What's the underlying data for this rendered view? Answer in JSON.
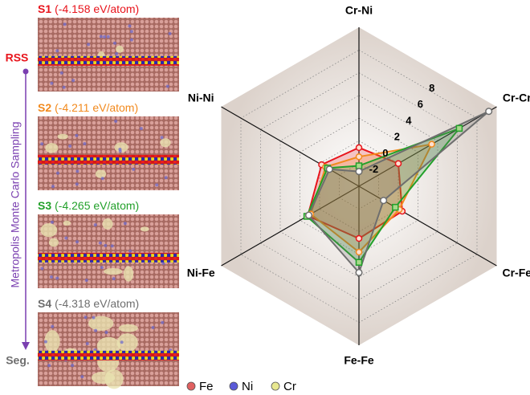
{
  "chart_data": {
    "type": "radar",
    "categories": [
      "Cr-Ni",
      "Cr-Cr",
      "Cr-Fe",
      "Fe-Fe",
      "Ni-Fe",
      "Ni-Ni"
    ],
    "rlim": [
      -4,
      10
    ],
    "rticks": [
      -2,
      0,
      2,
      4,
      6,
      8
    ],
    "grid": true,
    "series": [
      {
        "name": "S1",
        "energy": "(-4.158 eV/atom)",
        "color": "#e8141c",
        "marker": "circle",
        "values": [
          -0.6,
          0.0,
          0.4,
          0.6,
          1.2,
          -0.2
        ]
      },
      {
        "name": "S2",
        "energy": "(-4.211 eV/atom)",
        "color": "#f28a1e",
        "marker": "circle",
        "values": [
          -1.4,
          3.4,
          0.1,
          1.8,
          0.9,
          -0.6
        ]
      },
      {
        "name": "S3",
        "energy": "(-4.265 eV/atom)",
        "color": "#22a02a",
        "marker": "square",
        "values": [
          -2.2,
          6.2,
          -0.3,
          2.7,
          1.3,
          -0.8
        ]
      },
      {
        "name": "S4",
        "energy": "(-4.318 eV/atom)",
        "color": "#6e6e6e",
        "marker": "open-circle",
        "values": [
          -2.7,
          9.2,
          -1.5,
          3.6,
          1.1,
          -1.0
        ]
      }
    ]
  },
  "sampling": {
    "start": "RSS",
    "end": "Seg.",
    "label": "Metropolis Monte Carlo Sampling",
    "color": "#7a3fb0"
  },
  "atoms": [
    {
      "name": "Fe",
      "color": "#e06060"
    },
    {
      "name": "Ni",
      "color": "#5a5ad8"
    },
    {
      "name": "Cr",
      "color": "#e8e890"
    }
  ]
}
